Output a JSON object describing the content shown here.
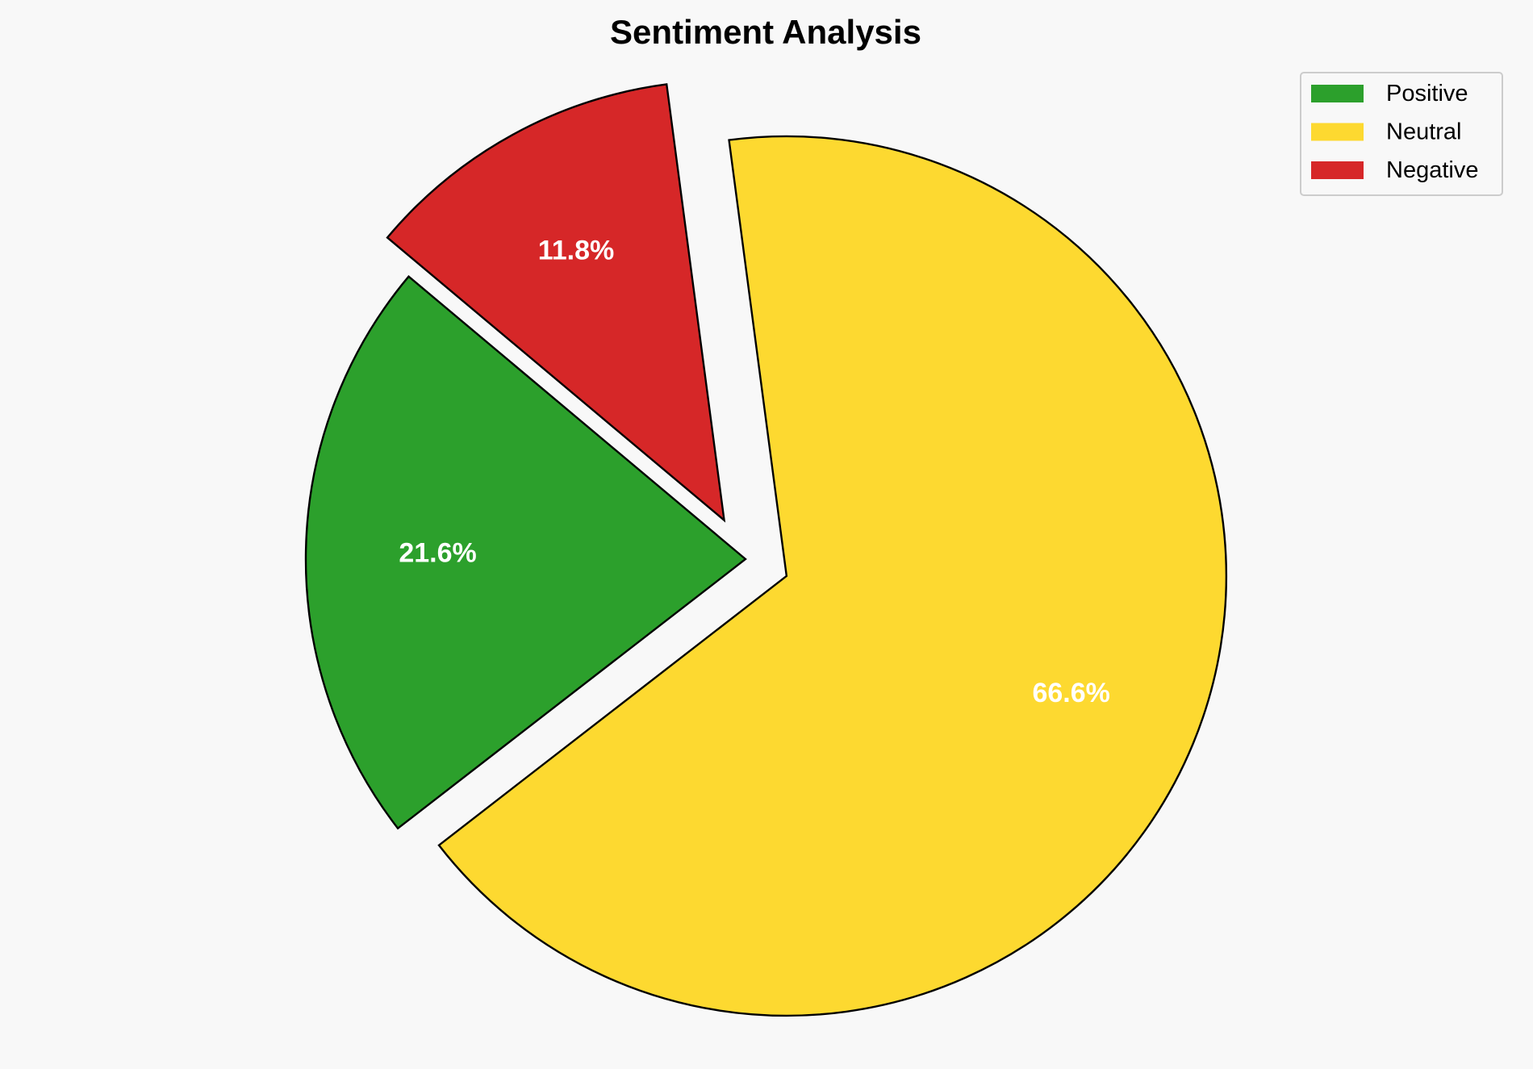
{
  "chart_data": {
    "type": "pie",
    "title": "Sentiment Analysis",
    "categories": [
      "Positive",
      "Neutral",
      "Negative"
    ],
    "values": [
      21.6,
      66.6,
      11.8
    ],
    "labels": [
      "21.6%",
      "66.6%",
      "11.8%"
    ],
    "colors": [
      "#2ca02c",
      "#fdd930",
      "#d62728"
    ],
    "exploded": [
      false,
      true,
      true
    ],
    "start_angle_deg": 140,
    "direction": "counterclockwise",
    "legend": {
      "placement": "top-right",
      "entries": [
        "Positive",
        "Neutral",
        "Negative"
      ]
    },
    "edge_color": "#000000",
    "label_color": "#ffffff",
    "background": "#f8f8f8"
  }
}
